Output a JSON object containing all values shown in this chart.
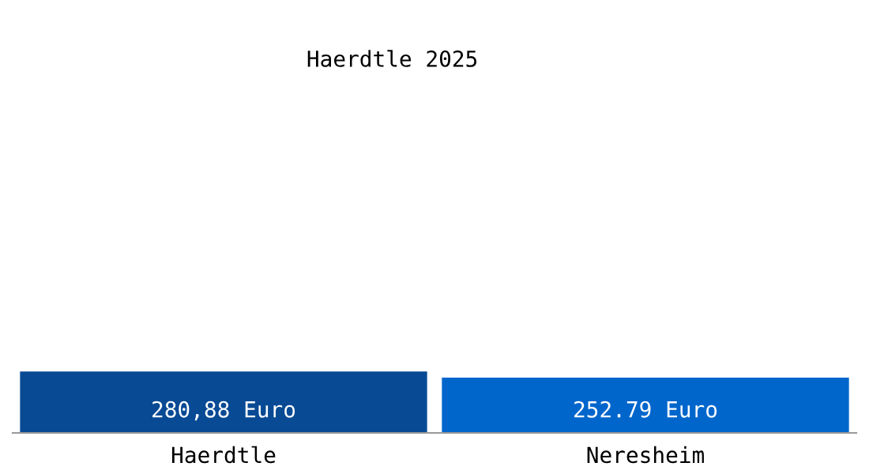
{
  "chart_data": {
    "type": "bar",
    "title": "Haerdtle 2025",
    "categories": [
      "Haerdtle",
      "Neresheim"
    ],
    "values": [
      280.88,
      252.79
    ],
    "value_labels": [
      "280,88 Euro",
      "252.79 Euro"
    ],
    "colors": [
      "#084a94",
      "#0066cc"
    ],
    "grid": false,
    "legend": false
  }
}
